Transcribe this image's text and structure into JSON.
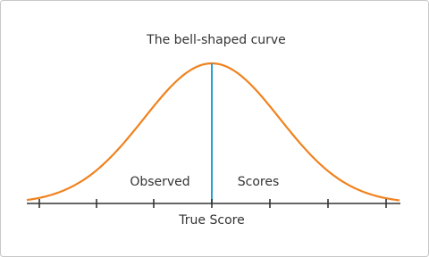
{
  "title": "The bell-shaped curve",
  "labels": {
    "left": "Observed",
    "right": "Scores"
  },
  "axis_label": "True Score"
}
